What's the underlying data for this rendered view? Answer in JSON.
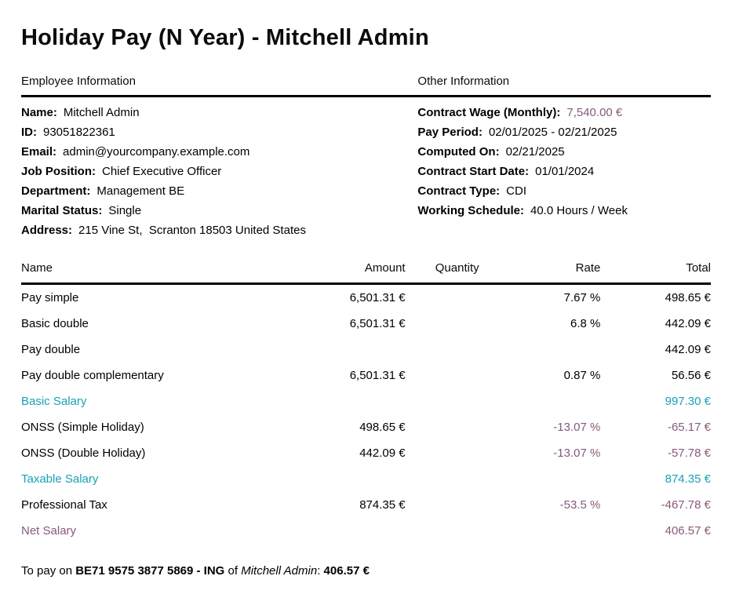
{
  "title": "Holiday Pay (N Year) - Mitchell Admin",
  "colors": {
    "teal": "#17a2b8",
    "purple": "#875A7B",
    "text": "#000000"
  },
  "sections": {
    "employee": {
      "heading": "Employee Information",
      "fields": [
        {
          "label": "Name:",
          "value": "Mitchell Admin"
        },
        {
          "label": "ID:",
          "value": "93051822361"
        },
        {
          "label": "Email:",
          "value": "admin@yourcompany.example.com"
        },
        {
          "label": "Job Position:",
          "value": "Chief Executive Officer"
        },
        {
          "label": "Department:",
          "value": "Management BE"
        },
        {
          "label": "Marital Status:",
          "value": "Single"
        },
        {
          "label": "Address:",
          "value": "215 Vine St,  Scranton 18503 United States"
        }
      ]
    },
    "other": {
      "heading": "Other Information",
      "fields": [
        {
          "label": "Contract Wage (Monthly):",
          "value": "7,540.00 €",
          "color": "purple"
        },
        {
          "label": "Pay Period:",
          "value": "02/01/2025 - 02/21/2025"
        },
        {
          "label": "Computed On:",
          "value": "02/21/2025"
        },
        {
          "label": "Contract Start Date:",
          "value": "01/01/2024"
        },
        {
          "label": "Contract Type:",
          "value": "CDI"
        },
        {
          "label": "Working Schedule:",
          "value": "40.0 Hours / Week"
        }
      ]
    }
  },
  "table": {
    "headers": [
      "Name",
      "Amount",
      "Quantity",
      "Rate",
      "Total"
    ],
    "rows": [
      {
        "name": "Pay simple",
        "amount": "6,501.31 €",
        "quantity": "",
        "rate": "7.67 %",
        "total": "498.65 €",
        "style": "normal"
      },
      {
        "name": "Basic double",
        "amount": "6,501.31 €",
        "quantity": "",
        "rate": "6.8 %",
        "total": "442.09 €",
        "style": "normal"
      },
      {
        "name": "Pay double",
        "amount": "",
        "quantity": "",
        "rate": "",
        "total": "442.09 €",
        "style": "normal"
      },
      {
        "name": "Pay double complementary",
        "amount": "6,501.31 €",
        "quantity": "",
        "rate": "0.87 %",
        "total": "56.56 €",
        "style": "normal"
      },
      {
        "name": "Basic Salary",
        "amount": "",
        "quantity": "",
        "rate": "",
        "total": "997.30 €",
        "style": "teal"
      },
      {
        "name": "ONSS (Simple Holiday)",
        "amount": "498.65 €",
        "quantity": "",
        "rate": "-13.07 %",
        "total": "-65.17 €",
        "style": "deduction"
      },
      {
        "name": "ONSS (Double Holiday)",
        "amount": "442.09 €",
        "quantity": "",
        "rate": "-13.07 %",
        "total": "-57.78 €",
        "style": "deduction"
      },
      {
        "name": "Taxable Salary",
        "amount": "",
        "quantity": "",
        "rate": "",
        "total": "874.35 €",
        "style": "teal"
      },
      {
        "name": "Professional Tax",
        "amount": "874.35 €",
        "quantity": "",
        "rate": "-53.5 %",
        "total": "-467.78 €",
        "style": "deduction"
      },
      {
        "name": "Net Salary",
        "amount": "",
        "quantity": "",
        "rate": "",
        "total": "406.57 €",
        "style": "net"
      }
    ]
  },
  "footer": {
    "prefix": "To pay on",
    "account": "BE71 9575 3877 5869 - ING",
    "middle": "of",
    "payee": "Mitchell Admin",
    "separator": ":",
    "amount": "406.57 €"
  }
}
